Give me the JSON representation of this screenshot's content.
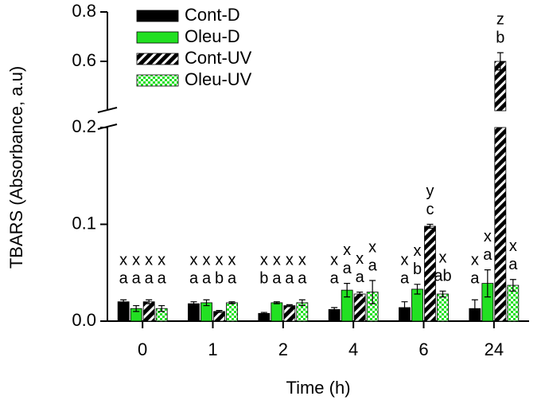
{
  "chart_data": {
    "type": "bar",
    "x_label": "Time (h)",
    "y_label": "TBARS (Absorbance, a.u)",
    "categories": [
      "0",
      "1",
      "2",
      "4",
      "6",
      "24"
    ],
    "ylim": [
      0,
      0.2
    ],
    "yticks": [
      {
        "value": 0,
        "label": "0.0"
      },
      0.1,
      0.2
    ],
    "ylim_upper": [
      0.4,
      0.8
    ],
    "yticks_upper": [
      0.6,
      0.8
    ],
    "axis_break": true,
    "series": [
      {
        "name": "Cont-D",
        "color": "#000000",
        "pattern": "solid",
        "values": [
          0.02,
          0.018,
          0.008,
          0.012,
          0.014,
          0.013
        ],
        "errors": [
          0.002,
          0.002,
          0.001,
          0.002,
          0.006,
          0.009
        ],
        "letters_top": [
          "x",
          "x",
          "x",
          "x",
          "x",
          "x"
        ],
        "letters_bottom": [
          "a",
          "a",
          "b",
          "a",
          "a",
          "a"
        ]
      },
      {
        "name": "Oleu-D",
        "color": "#22e022",
        "pattern": "solid",
        "values": [
          0.013,
          0.019,
          0.019,
          0.032,
          0.033,
          0.039
        ],
        "errors": [
          0.003,
          0.003,
          0.001,
          0.007,
          0.005,
          0.014
        ],
        "letters_top": [
          "x",
          "x",
          "x",
          "x",
          "x",
          "x"
        ],
        "letters_bottom": [
          "a",
          "a",
          "a",
          "a",
          "b",
          "a"
        ]
      },
      {
        "name": "Cont-UV",
        "color": "#000000",
        "pattern": "stripes",
        "values": [
          0.02,
          0.01,
          0.016,
          0.028,
          0.098,
          0.6
        ],
        "errors": [
          0.002,
          0.001,
          0.001,
          0.002,
          0.002,
          0.035
        ],
        "letters_top": [
          "x",
          "x",
          "x",
          "x",
          "y",
          "z"
        ],
        "letters_bottom": [
          "a",
          "b",
          "a",
          "a",
          "c",
          "b"
        ]
      },
      {
        "name": "Oleu-UV",
        "color": "#22e022",
        "pattern": "checker",
        "values": [
          0.013,
          0.019,
          0.019,
          0.03,
          0.028,
          0.037
        ],
        "errors": [
          0.003,
          0.001,
          0.003,
          0.012,
          0.003,
          0.006
        ],
        "letters_top": [
          "x",
          "x",
          "x",
          "x",
          "x",
          "x"
        ],
        "letters_bottom": [
          "a",
          "a",
          "a",
          "a",
          "ab",
          "a"
        ]
      }
    ]
  }
}
